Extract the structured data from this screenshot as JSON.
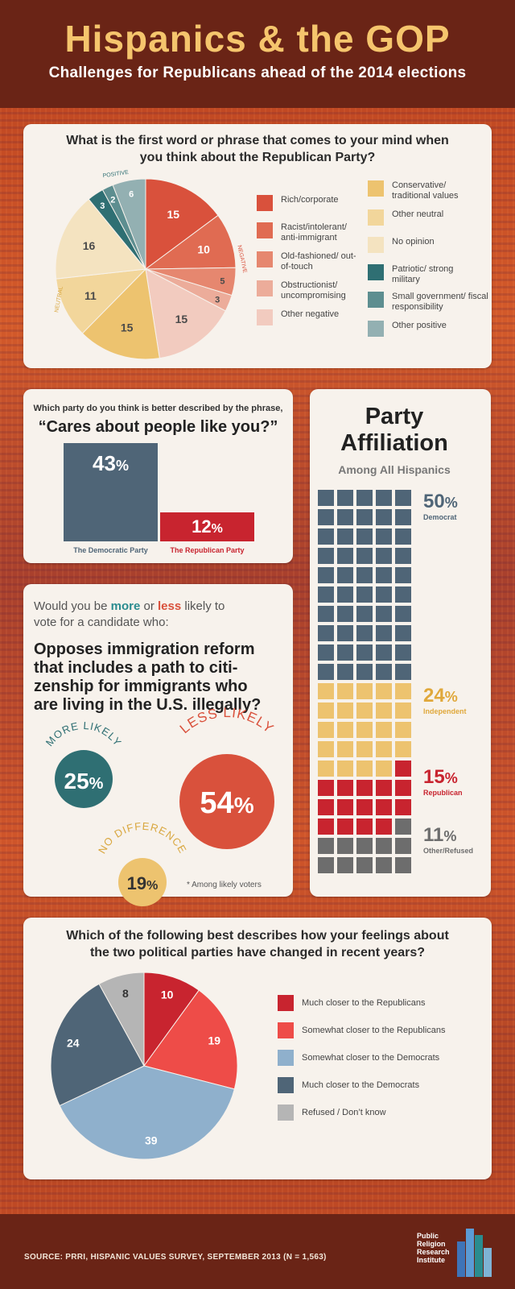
{
  "header": {
    "title": "Hispanics & the GOP",
    "subtitle": "Challenges for Republicans ahead of the 2014 elections"
  },
  "first_word": {
    "question": "What is the first word or phrase that comes to your mind when you think about the Republican Party?",
    "group_labels": {
      "positive": "POSITIVE",
      "negative": "NEGATIVE",
      "neutral": "NEUTRAL"
    },
    "legend_left": [
      {
        "label": "Rich/corporate",
        "color": "#d9513c"
      },
      {
        "label": "Racist/intolerant/ anti-immigrant",
        "color": "#e06b52"
      },
      {
        "label": "Old-fashioned/ out-of-touch",
        "color": "#e6876f"
      },
      {
        "label": "Obstructionist/ uncompromising",
        "color": "#ecac9a"
      },
      {
        "label": "Other negative",
        "color": "#f2cbbf"
      }
    ],
    "legend_right": [
      {
        "label": "Conservative/ traditional values",
        "color": "#edc36f"
      },
      {
        "label": "Other neutral",
        "color": "#f2d69b"
      },
      {
        "label": "No opinion",
        "color": "#f4e3c0"
      },
      {
        "label": "Patriotic/ strong military",
        "color": "#2f6f73"
      },
      {
        "label": "Small government/ fiscal responsibility",
        "color": "#5d8e90"
      },
      {
        "label": "Other positive",
        "color": "#93b0b2"
      }
    ]
  },
  "chart_data": [
    {
      "type": "pie",
      "title": "What is the first word or phrase that comes to your mind when you think about the Republican Party?",
      "slices": [
        {
          "label": "Rich/corporate",
          "value": 15,
          "color": "#d9513c"
        },
        {
          "label": "Racist/intolerant/ anti-immigrant",
          "value": 10,
          "color": "#e06b52"
        },
        {
          "label": "Old-fashioned/ out-of-touch",
          "value": 5,
          "color": "#e6876f"
        },
        {
          "label": "Obstructionist/ uncompromising",
          "value": 3,
          "color": "#ecac9a"
        },
        {
          "label": "Other negative",
          "value": 15,
          "color": "#f2cbbf"
        },
        {
          "label": "Conservative/ traditional values",
          "value": 15,
          "color": "#edc36f"
        },
        {
          "label": "Other neutral",
          "value": 11,
          "color": "#f2d69b"
        },
        {
          "label": "No opinion",
          "value": 16,
          "color": "#f4e3c0"
        },
        {
          "label": "Patriotic/ strong military",
          "value": 3,
          "color": "#2f6f73"
        },
        {
          "label": "Small government/ fiscal responsibility",
          "value": 2,
          "color": "#5d8e90"
        },
        {
          "label": "Other positive",
          "value": 6,
          "color": "#93b0b2"
        }
      ]
    },
    {
      "type": "bar",
      "title": "Which party do you think is better described by the phrase, “Cares about people like you?”",
      "categories": [
        "The Democratic Party",
        "The Republican Party"
      ],
      "values": [
        43,
        12
      ],
      "unit": "%",
      "colors": [
        "#4f6577",
        "#c8242f"
      ]
    },
    {
      "type": "waffle",
      "title": "Party Affiliation",
      "subtitle": "Among All Hispanics",
      "series": [
        {
          "name": "Democrat",
          "value": 50,
          "color": "#4f6577"
        },
        {
          "name": "Independent",
          "value": 24,
          "color": "#edc36f"
        },
        {
          "name": "Republican",
          "value": 15,
          "color": "#c8242f"
        },
        {
          "name": "Other/Refused",
          "value": 11,
          "color": "#6d6d6d"
        }
      ]
    },
    {
      "type": "bubble",
      "title": "Opposes immigration reform that includes a path to citizenship for immigrants who are living in the U.S. illegally?",
      "series": [
        {
          "name": "MORE LIKELY",
          "value": 25,
          "color": "#2f6f73"
        },
        {
          "name": "LESS LIKELY",
          "value": 54,
          "color": "#d9513c"
        },
        {
          "name": "NO DIFFERENCE",
          "value": 19,
          "color": "#edc36f"
        }
      ]
    },
    {
      "type": "pie",
      "title": "Which of the following best describes how your feelings about the two political parties have changed in recent years?",
      "slices": [
        {
          "label": "Much closer to the Republicans",
          "value": 10,
          "color": "#c8242f"
        },
        {
          "label": "Somewhat closer to the Republicans",
          "value": 19,
          "color": "#ee4c48"
        },
        {
          "label": "Somewhat closer to the Democrats",
          "value": 39,
          "color": "#8fb0cc"
        },
        {
          "label": "Much closer to the Democrats",
          "value": 24,
          "color": "#4f6577"
        },
        {
          "label": "Refused / Don’t know",
          "value": 8,
          "color": "#b5b5b5"
        }
      ]
    }
  ],
  "cares": {
    "prompt": "Which party do you think is better described by the phrase,",
    "phrase": "“Cares about people like you?”",
    "dem_value": "43",
    "rep_value": "12",
    "pct_sign": "%",
    "dem_label": "The Democratic Party",
    "rep_label": "The Republican Party"
  },
  "affiliation": {
    "title_line1": "Party",
    "title_line2": "Affiliation",
    "subtitle": "Among All Hispanics",
    "dem_pct": "50",
    "dem_label": "Democrat",
    "ind_pct": "24",
    "ind_label": "Independent",
    "rep_pct": "15",
    "rep_label": "Republican",
    "oth_pct": "11",
    "oth_label": "Other/Refused",
    "pct_sign": "%"
  },
  "immigration": {
    "q_part1": "Would you be ",
    "q_more": "more",
    "q_or": " or ",
    "q_less": "less",
    "q_part2": " likely to",
    "q_line2": "vote for a candidate who:",
    "headline_line1": "Opposes immigration reform",
    "headline_line2": "that includes a path to citi-",
    "headline_line3": "zenship for immigrants who",
    "headline_line4": "are living in the U.S. illegally?",
    "more_label": "MORE LIKELY",
    "more_value": "25",
    "less_label": "LESS LIKELY",
    "less_value": "54",
    "nodiff_label": "NO DIFFERENCE",
    "nodiff_value": "19",
    "pct_sign": "%",
    "footnote": "* Among likely voters"
  },
  "feelings": {
    "question_line1": "Which of the following best describes how your feelings about",
    "question_line2": "the two political parties have changed in recent years?"
  },
  "footer": {
    "source": "SOURCE: PRRI, HISPANIC VALUES SURVEY, SEPTEMBER 2013 (N = 1,563)",
    "logo_line1": "Public",
    "logo_line2": "Religion",
    "logo_line3": "Research",
    "logo_line4": "Institute",
    "logo_colors": [
      "#3e74b8",
      "#5b9bd5",
      "#2a8c8f",
      "#7fb3d5"
    ]
  }
}
